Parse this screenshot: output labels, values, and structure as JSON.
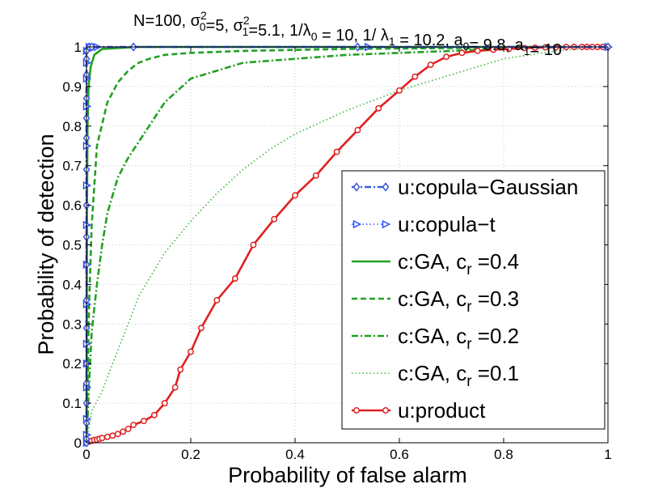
{
  "chart_data": {
    "type": "line",
    "title": "N=100, σ₀²=5, σ₁²=5.1,  1/λ₀ = 10, 1/ λ₁ = 10.2, a₀= 9.8, a₁= 10",
    "xlabel": "Probability of false alarm",
    "ylabel": "Probability of detection",
    "xlim": [
      0,
      1
    ],
    "ylim": [
      0,
      1
    ],
    "grid": true,
    "legend_position": "bottom-right",
    "x_ticks": [
      "0",
      "0.2",
      "0.4",
      "0.6",
      "0.8",
      "1"
    ],
    "y_ticks": [
      "0",
      "0.1",
      "0.2",
      "0.3",
      "0.4",
      "0.5",
      "0.6",
      "0.7",
      "0.8",
      "0.9",
      "1"
    ],
    "series": [
      {
        "name": "u:copula−Gaussian",
        "color": "#3b5bdb",
        "style": "dashdot",
        "marker": "diamond",
        "x": [
          0,
          0,
          0,
          0,
          0,
          0,
          0,
          0,
          0,
          0,
          0,
          0,
          0,
          0,
          0,
          0,
          0,
          0,
          0.005,
          0.01,
          0.09,
          0.52,
          1.0
        ],
        "y": [
          0,
          0.01,
          0.05,
          0.1,
          0.15,
          0.2,
          0.29,
          0.36,
          0.45,
          0.52,
          0.6,
          0.69,
          0.77,
          0.82,
          0.87,
          0.93,
          0.97,
          0.99,
          1.0,
          1.0,
          1.0,
          1.0,
          1.0
        ]
      },
      {
        "name": "u:copula−t",
        "color": "#2a4dff",
        "style": "dotted",
        "marker": "triangle-right",
        "x": [
          0,
          0,
          0,
          0,
          0,
          0,
          0,
          0,
          0,
          0,
          0,
          0,
          0,
          0,
          0,
          0.005,
          0.01,
          0.02,
          0.54,
          1.0
        ],
        "y": [
          0,
          0.02,
          0.06,
          0.14,
          0.2,
          0.25,
          0.35,
          0.45,
          0.55,
          0.65,
          0.75,
          0.85,
          0.92,
          0.96,
          0.99,
          1.0,
          1.0,
          1.0,
          1.0,
          1.0
        ]
      },
      {
        "name": "c:GA, c r =0.4",
        "label_main": "c:GA, c",
        "label_sub": "r",
        "label_tail": " =0.4",
        "color": "#22a022",
        "style": "solid",
        "marker": "none",
        "x": [
          0,
          0.001,
          0.002,
          0.004,
          0.008,
          0.015,
          0.03,
          0.1,
          0.5,
          1.0
        ],
        "y": [
          0,
          0.6,
          0.8,
          0.9,
          0.95,
          0.98,
          0.995,
          1.0,
          1.0,
          1.0
        ]
      },
      {
        "name": "c:GA, c r =0.3",
        "label_main": "c:GA, c",
        "label_sub": "r",
        "label_tail": " =0.3",
        "color": "#22a022",
        "style": "dashed",
        "marker": "none",
        "x": [
          0,
          0.005,
          0.01,
          0.02,
          0.04,
          0.06,
          0.08,
          0.1,
          0.12,
          0.15,
          0.2,
          0.3,
          0.5,
          1.0
        ],
        "y": [
          0,
          0.35,
          0.55,
          0.75,
          0.86,
          0.91,
          0.94,
          0.96,
          0.97,
          0.98,
          0.985,
          0.99,
          0.995,
          1.0
        ]
      },
      {
        "name": "c:GA, c r =0.2",
        "label_main": "c:GA, c",
        "label_sub": "r",
        "label_tail": " =0.2",
        "color": "#22a022",
        "style": "dashdot",
        "marker": "none",
        "x": [
          0,
          0.005,
          0.01,
          0.02,
          0.03,
          0.04,
          0.06,
          0.08,
          0.1,
          0.12,
          0.15,
          0.2,
          0.25,
          0.3,
          0.4,
          0.5,
          0.6,
          0.7,
          0.8,
          0.9,
          1.0
        ],
        "y": [
          0,
          0.15,
          0.28,
          0.4,
          0.5,
          0.58,
          0.67,
          0.72,
          0.76,
          0.8,
          0.86,
          0.92,
          0.94,
          0.96,
          0.97,
          0.98,
          0.985,
          0.99,
          0.995,
          1.0,
          1.0
        ]
      },
      {
        "name": "c:GA, c r =0.1",
        "label_main": "c:GA, c",
        "label_sub": "r",
        "label_tail": " =0.1",
        "color": "#3cb43c",
        "style": "dotted",
        "marker": "none",
        "x": [
          0,
          0.01,
          0.03,
          0.05,
          0.08,
          0.1,
          0.15,
          0.2,
          0.25,
          0.3,
          0.35,
          0.4,
          0.5,
          0.6,
          0.7,
          0.8,
          0.9,
          1.0
        ],
        "y": [
          0,
          0.08,
          0.13,
          0.2,
          0.3,
          0.37,
          0.48,
          0.56,
          0.63,
          0.69,
          0.74,
          0.78,
          0.84,
          0.89,
          0.93,
          0.97,
          0.99,
          1.0
        ]
      },
      {
        "name": "u:product",
        "color": "#e02020",
        "style": "solid",
        "marker": "circle",
        "x": [
          0,
          0.005,
          0.01,
          0.015,
          0.02,
          0.025,
          0.03,
          0.04,
          0.05,
          0.06,
          0.07,
          0.08,
          0.09,
          0.11,
          0.13,
          0.15,
          0.17,
          0.18,
          0.2,
          0.22,
          0.25,
          0.285,
          0.32,
          0.36,
          0.4,
          0.44,
          0.48,
          0.52,
          0.56,
          0.6,
          0.63,
          0.66,
          0.69,
          0.72,
          0.75,
          0.78,
          0.81,
          0.84,
          0.86,
          0.88,
          0.9,
          0.92,
          0.935,
          0.95,
          0.96,
          0.97,
          0.98,
          0.99,
          1.0
        ],
        "y": [
          0,
          0.003,
          0.005,
          0.007,
          0.008,
          0.01,
          0.012,
          0.015,
          0.018,
          0.022,
          0.028,
          0.035,
          0.045,
          0.055,
          0.07,
          0.1,
          0.14,
          0.185,
          0.23,
          0.29,
          0.36,
          0.415,
          0.5,
          0.565,
          0.625,
          0.675,
          0.735,
          0.79,
          0.845,
          0.89,
          0.925,
          0.955,
          0.975,
          0.985,
          0.99,
          0.993,
          0.995,
          0.997,
          0.998,
          0.999,
          0.999,
          1.0,
          1.0,
          1.0,
          1.0,
          1.0,
          1.0,
          1.0,
          1.0
        ]
      }
    ]
  }
}
